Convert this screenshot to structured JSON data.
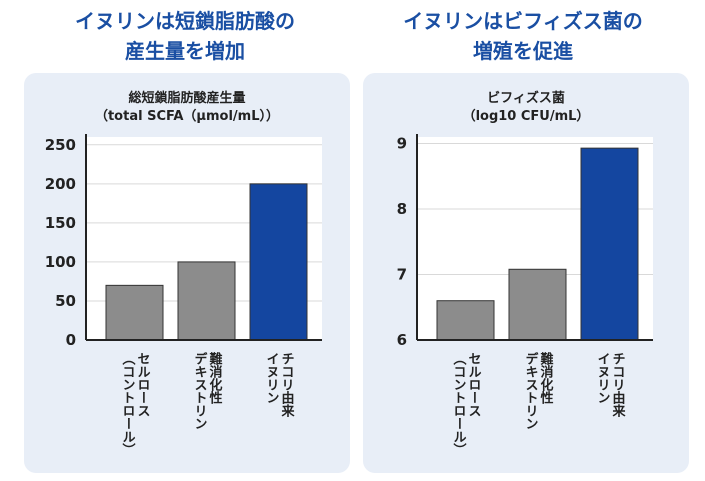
{
  "headings": {
    "left": [
      "イヌリンは短鎖脂肪酸の",
      "産生量を増加"
    ],
    "right": [
      "イヌリンはビフィズス菌の",
      "増殖を促進"
    ]
  },
  "chart_data": [
    {
      "type": "bar",
      "title": [
        "総短鎖脂肪酸産生量",
        "（total SCFA（μmol/mL））"
      ],
      "categories": [
        [
          "セルロース",
          "（コントロール）"
        ],
        [
          "難消化性",
          "デキストリン"
        ],
        [
          "チコリ由来",
          "イヌリン"
        ]
      ],
      "values": [
        70,
        100,
        200
      ],
      "ylim": [
        0,
        260
      ],
      "yticks": [
        0,
        50,
        100,
        150,
        200,
        250
      ],
      "colors": [
        "#8c8c8c",
        "#8c8c8c",
        "#1446a0"
      ],
      "grid": true,
      "legend": "none"
    },
    {
      "type": "bar",
      "title": [
        "ビフィズス菌",
        "（log10 CFU/mL）"
      ],
      "categories": [
        [
          "セルロース",
          "（コントロール）"
        ],
        [
          "難消化性",
          "デキストリン"
        ],
        [
          "チコリ由来",
          "イヌリン"
        ]
      ],
      "values": [
        6.6,
        7.08,
        8.93
      ],
      "ylim": [
        6,
        9.1
      ],
      "yticks": [
        6,
        7,
        8,
        9
      ],
      "colors": [
        "#8c8c8c",
        "#8c8c8c",
        "#1446a0"
      ],
      "grid": true,
      "legend": "none"
    }
  ]
}
